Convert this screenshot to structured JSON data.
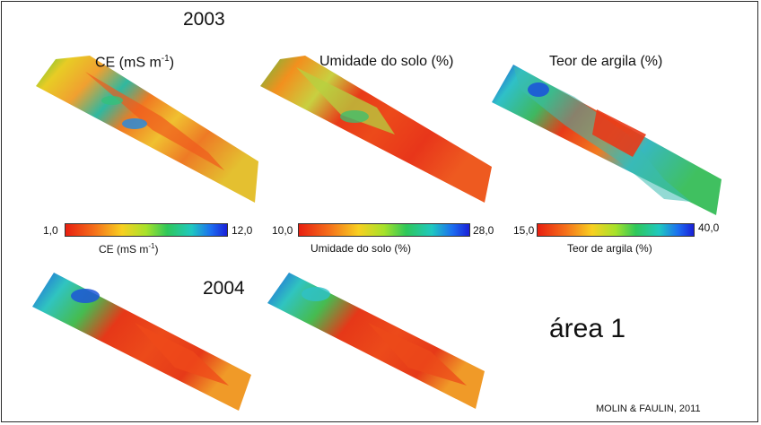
{
  "slide": {
    "year_2003": "2003",
    "year_2004": "2004",
    "area_label": "área 1",
    "citation": "MOLIN & FAULIN, 2011"
  },
  "maps": {
    "ce": {
      "title_main": "CE (mS m",
      "title_sup": "-1",
      "title_end": ")",
      "scale_min": "1,0",
      "scale_max": "12,0",
      "caption_main": "CE (mS m",
      "caption_sup": "-1",
      "caption_end": ")"
    },
    "umidade": {
      "title": "Umidade do solo (%)",
      "scale_min": "10,0",
      "scale_max": "28,0",
      "caption": "Umidade do solo (%)"
    },
    "argila": {
      "title": "Teor de argila (%)",
      "scale_min": "15,0",
      "scale_max": "40,0",
      "caption": "Teor de argila (%)"
    }
  },
  "colors": {
    "low": "#e81f10",
    "mid_low": "#f8d020",
    "mid": "#2ec75a",
    "mid_high": "#1fc8c0",
    "high": "#1a20d8"
  }
}
